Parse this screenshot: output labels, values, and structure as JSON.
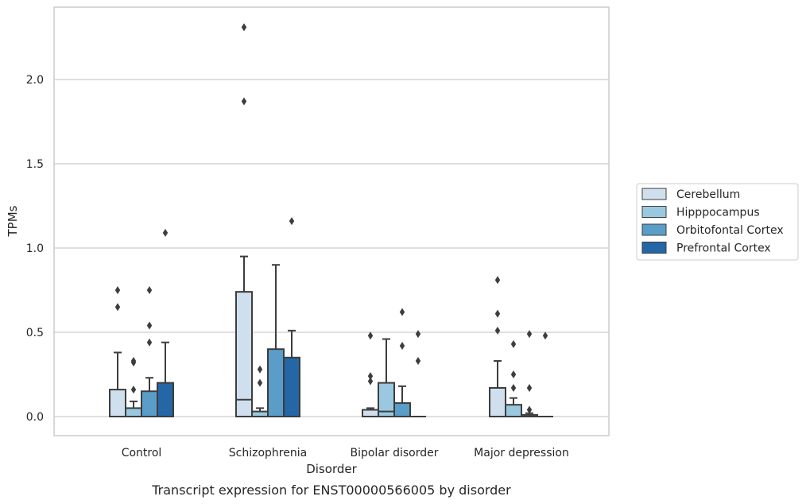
{
  "caption": "Transcript expression for ENST00000566005 by disorder",
  "chart_data": {
    "type": "box",
    "xlabel": "Disorder",
    "ylabel": "TPMs",
    "ylim": [
      -0.11,
      2.44
    ],
    "yticks": [
      "0.0",
      "0.5",
      "1.0",
      "1.5",
      "2.0"
    ],
    "ytick_values": [
      0,
      0.5,
      1.0,
      1.5,
      2.0
    ],
    "grid": "horizontal",
    "legend_position": "right",
    "categories": [
      "Control",
      "Schizophrenia",
      "Bipolar disorder",
      "Major depression"
    ],
    "series": [
      {
        "name": "Cerebellum",
        "color": "#d0dfee",
        "boxes": [
          {
            "q1": 0,
            "median": 0,
            "q3": 0.16,
            "whislo": 0,
            "whishi": 0.38,
            "fliers": [
              0.65,
              0.75
            ]
          },
          {
            "q1": 0,
            "median": 0.1,
            "q3": 0.74,
            "whislo": 0,
            "whishi": 0.95,
            "fliers": [
              1.87,
              2.31
            ]
          },
          {
            "q1": 0,
            "median": 0,
            "q3": 0.04,
            "whislo": 0,
            "whishi": 0.05,
            "fliers": [
              0.21,
              0.24,
              0.48
            ]
          },
          {
            "q1": 0,
            "median": 0,
            "q3": 0.17,
            "whislo": 0,
            "whishi": 0.33,
            "fliers": [
              0.51,
              0.61,
              0.81
            ]
          }
        ]
      },
      {
        "name": "Hipppocampus",
        "color": "#9ac8e0",
        "boxes": [
          {
            "q1": 0,
            "median": 0,
            "q3": 0.05,
            "whislo": 0,
            "whishi": 0.09,
            "fliers": [
              0.16,
              0.32,
              0.33
            ]
          },
          {
            "q1": 0,
            "median": 0,
            "q3": 0.03,
            "whislo": 0,
            "whishi": 0.05,
            "fliers": [
              0.2,
              0.28
            ]
          },
          {
            "q1": 0,
            "median": 0.03,
            "q3": 0.2,
            "whislo": 0,
            "whishi": 0.46,
            "fliers": []
          },
          {
            "q1": 0,
            "median": 0,
            "q3": 0.07,
            "whislo": 0,
            "whishi": 0.11,
            "fliers": [
              0.17,
              0.25,
              0.43
            ]
          }
        ]
      },
      {
        "name": "Orbitofontal Cortex",
        "color": "#5a9dc9",
        "boxes": [
          {
            "q1": 0,
            "median": 0,
            "q3": 0.15,
            "whislo": 0,
            "whishi": 0.23,
            "fliers": [
              0.44,
              0.54,
              0.75
            ]
          },
          {
            "q1": 0,
            "median": 0,
            "q3": 0.4,
            "whislo": 0,
            "whishi": 0.9,
            "fliers": []
          },
          {
            "q1": 0,
            "median": 0,
            "q3": 0.08,
            "whislo": 0,
            "whishi": 0.18,
            "fliers": [
              0.42,
              0.62
            ]
          },
          {
            "q1": 0,
            "median": 0,
            "q3": 0.01,
            "whislo": 0,
            "whishi": 0.02,
            "fliers": [
              0.04,
              0.17,
              0.49
            ]
          }
        ]
      },
      {
        "name": "Prefrontal Cortex",
        "color": "#2466a6",
        "boxes": [
          {
            "q1": 0,
            "median": 0,
            "q3": 0.2,
            "whislo": 0,
            "whishi": 0.44,
            "fliers": [
              1.09
            ]
          },
          {
            "q1": 0,
            "median": 0,
            "q3": 0.35,
            "whislo": 0,
            "whishi": 0.51,
            "fliers": [
              1.16
            ]
          },
          {
            "q1": 0,
            "median": 0,
            "q3": 0,
            "whislo": 0,
            "whishi": 0,
            "fliers": [
              0.33,
              0.49
            ]
          },
          {
            "q1": 0,
            "median": 0,
            "q3": 0,
            "whislo": 0,
            "whishi": 0,
            "fliers": [
              0.48
            ]
          }
        ]
      }
    ]
  },
  "colors": {
    "background": "#ffffff",
    "grid": "#cccccc",
    "axes_edge": "#cccccc",
    "box_edge": "#3d3d3d",
    "text": "#262626"
  }
}
